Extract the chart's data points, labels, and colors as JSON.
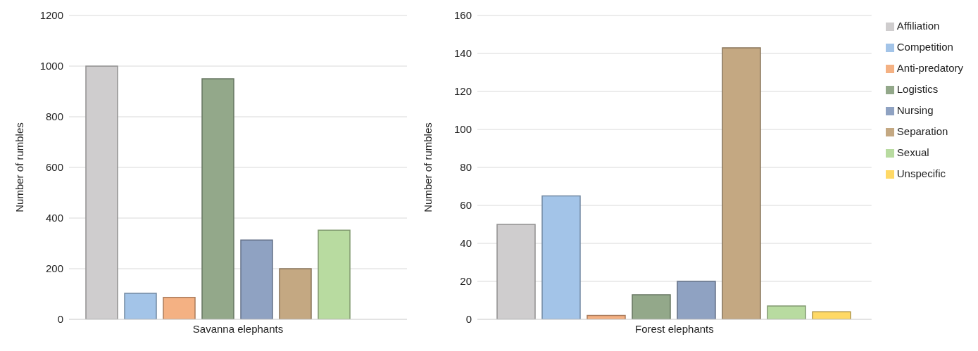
{
  "chart_data": [
    {
      "type": "bar",
      "ylabel": "Number of rumbles",
      "categories": [
        "Savanna elephants"
      ],
      "ylim": [
        0,
        1200
      ],
      "yticks": [
        0,
        200,
        400,
        600,
        800,
        1000,
        1200
      ],
      "grid": "y",
      "legend": false,
      "series": [
        {
          "color": "#cfcdce",
          "values": [
            1000
          ]
        },
        {
          "color": "#a3c4e8",
          "values": [
            103
          ]
        },
        {
          "color": "#f4b183",
          "values": [
            87
          ]
        },
        {
          "color": "#93a88a",
          "values": [
            950
          ]
        },
        {
          "color": "#8fa2c2",
          "values": [
            313
          ]
        },
        {
          "color": "#c4a882",
          "values": [
            200
          ]
        },
        {
          "color": "#b8dba0",
          "values": [
            352
          ]
        },
        {
          "color": "#ffd966",
          "values": [
            0
          ]
        }
      ]
    },
    {
      "type": "bar",
      "ylabel": "Number of rumbles",
      "categories": [
        "Forest elephants"
      ],
      "ylim": [
        0,
        160
      ],
      "yticks": [
        0,
        20,
        40,
        60,
        80,
        100,
        120,
        140,
        160
      ],
      "grid": "y",
      "legend": "right",
      "series": [
        {
          "name": "Affiliation",
          "color": "#cfcdce",
          "values": [
            50
          ]
        },
        {
          "name": "Competition",
          "color": "#a3c4e8",
          "values": [
            65
          ]
        },
        {
          "name": "Anti-predatory",
          "color": "#f4b183",
          "values": [
            2
          ]
        },
        {
          "name": "Logistics",
          "color": "#93a88a",
          "values": [
            13
          ]
        },
        {
          "name": "Nursing",
          "color": "#8fa2c2",
          "values": [
            20
          ]
        },
        {
          "name": "Separation",
          "color": "#c4a882",
          "values": [
            143
          ]
        },
        {
          "name": "Sexual",
          "color": "#b8dba0",
          "values": [
            7
          ]
        },
        {
          "name": "Unspecific",
          "color": "#ffd966",
          "values": [
            4
          ]
        }
      ]
    }
  ]
}
